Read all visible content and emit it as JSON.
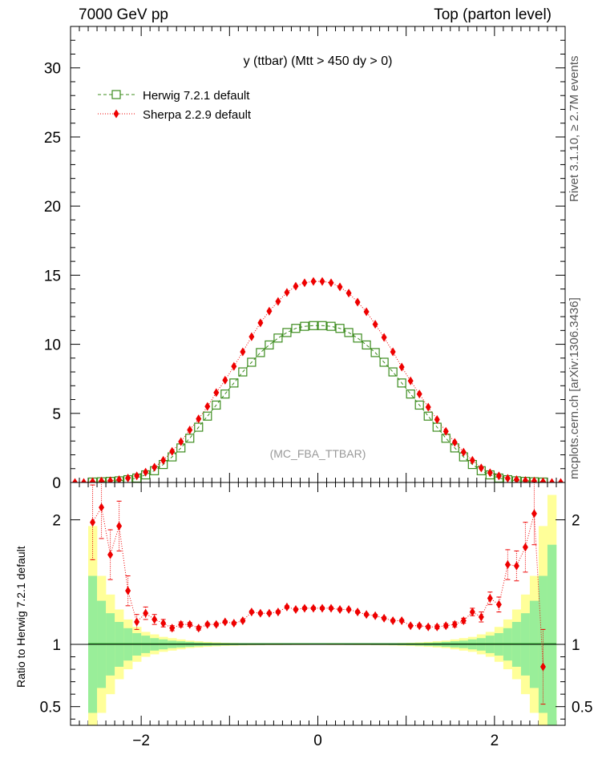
{
  "header": {
    "left": "7000 GeV pp",
    "right": "Top (parton level)"
  },
  "side_labels": {
    "rivet": "Rivet 3.1.10, ≥ 2.7M events",
    "mcplots": "mcplots.cern.ch [arXiv:1306.3436]"
  },
  "chart_data": [
    {
      "type": "scatter",
      "panel": "main",
      "title": "y (ttbar) (Mtt > 450 dy > 0)",
      "watermark": "(MC_FBA_TTBAR)",
      "xlim": [
        -2.8,
        2.8
      ],
      "ylim": [
        0,
        33
      ],
      "x_ticks": [
        -2,
        0,
        2
      ],
      "y_ticks": [
        0,
        5,
        10,
        15,
        20,
        25,
        30
      ],
      "legend_position": "top-left",
      "series": [
        {
          "name": "Herwig 7.2.1 default",
          "color": "#3c8c1e",
          "marker": "open-square",
          "line": "dashed",
          "x": [
            -2.55,
            -2.45,
            -2.35,
            -2.25,
            -2.15,
            -2.05,
            -1.95,
            -1.85,
            -1.75,
            -1.65,
            -1.55,
            -1.45,
            -1.35,
            -1.25,
            -1.15,
            -1.05,
            -0.95,
            -0.85,
            -0.75,
            -0.65,
            -0.55,
            -0.45,
            -0.35,
            -0.25,
            -0.15,
            -0.05,
            0.05,
            0.15,
            0.25,
            0.35,
            0.45,
            0.55,
            0.65,
            0.75,
            0.85,
            0.95,
            1.05,
            1.15,
            1.25,
            1.35,
            1.45,
            1.55,
            1.65,
            1.75,
            1.85,
            1.95,
            2.05,
            2.15,
            2.25,
            2.35,
            2.45,
            2.55
          ],
          "y": [
            0.03,
            0.05,
            0.08,
            0.12,
            0.2,
            0.32,
            0.55,
            0.85,
            1.3,
            1.85,
            2.5,
            3.2,
            4.0,
            4.8,
            5.6,
            6.4,
            7.2,
            8.0,
            8.7,
            9.4,
            9.95,
            10.45,
            10.85,
            11.15,
            11.3,
            11.35,
            11.35,
            11.3,
            11.15,
            10.85,
            10.45,
            9.95,
            9.4,
            8.7,
            8.0,
            7.2,
            6.4,
            5.6,
            4.8,
            4.0,
            3.2,
            2.5,
            1.85,
            1.3,
            0.85,
            0.55,
            0.32,
            0.2,
            0.12,
            0.08,
            0.05,
            0.03
          ]
        },
        {
          "name": "Sherpa 2.2.9 default",
          "color": "#ee0000",
          "marker": "filled-diamond",
          "line": "dotted",
          "x": [
            -2.75,
            -2.65,
            -2.55,
            -2.45,
            -2.35,
            -2.25,
            -2.15,
            -2.05,
            -1.95,
            -1.85,
            -1.75,
            -1.65,
            -1.55,
            -1.45,
            -1.35,
            -1.25,
            -1.15,
            -1.05,
            -0.95,
            -0.85,
            -0.75,
            -0.65,
            -0.55,
            -0.45,
            -0.35,
            -0.25,
            -0.15,
            -0.05,
            0.05,
            0.15,
            0.25,
            0.35,
            0.45,
            0.55,
            0.65,
            0.75,
            0.85,
            0.95,
            1.05,
            1.15,
            1.25,
            1.35,
            1.45,
            1.55,
            1.65,
            1.75,
            1.85,
            1.95,
            2.05,
            2.15,
            2.25,
            2.35,
            2.45,
            2.55,
            2.65,
            2.75
          ],
          "y": [
            0.0,
            0.0,
            0.06,
            0.1,
            0.12,
            0.2,
            0.32,
            0.48,
            0.75,
            1.1,
            1.6,
            2.25,
            2.95,
            3.8,
            4.6,
            5.5,
            6.5,
            7.4,
            8.4,
            9.45,
            10.55,
            11.55,
            12.4,
            13.1,
            13.75,
            14.2,
            14.45,
            14.55,
            14.55,
            14.45,
            14.15,
            13.7,
            13.05,
            12.35,
            11.45,
            10.5,
            9.45,
            8.35,
            7.35,
            6.4,
            5.45,
            4.55,
            3.7,
            2.9,
            2.2,
            1.6,
            1.05,
            0.7,
            0.48,
            0.3,
            0.2,
            0.14,
            0.1,
            0.05,
            0.0,
            0.0
          ]
        }
      ]
    },
    {
      "type": "line",
      "panel": "ratio",
      "ylabel": "Ratio to Herwig 7.2.1 default",
      "xlim": [
        -2.8,
        2.8
      ],
      "ylim": [
        0.35,
        2.3
      ],
      "x_ticks": [
        -2,
        0,
        2
      ],
      "y_ticks": [
        0.5,
        1,
        2
      ],
      "reference_line": 1,
      "band_colors": {
        "inner": "#99ee99",
        "outer": "#ffff99"
      },
      "bands": {
        "x_edges": [
          -2.6,
          -2.5,
          -2.4,
          -2.3,
          -2.2,
          -2.1,
          -2.0,
          -1.9,
          -1.8,
          -1.7,
          -1.6,
          -1.5,
          -1.4,
          -1.3,
          -1.2,
          -1.1,
          -1.0,
          -0.9,
          -0.8,
          -0.7,
          -0.6,
          -0.5,
          -0.4,
          -0.3,
          -0.2,
          -0.1,
          0.0,
          0.1,
          0.2,
          0.3,
          0.4,
          0.5,
          0.6,
          0.7,
          0.8,
          0.9,
          1.0,
          1.1,
          1.2,
          1.3,
          1.4,
          1.5,
          1.6,
          1.7,
          1.8,
          1.9,
          2.0,
          2.1,
          2.2,
          2.3,
          2.4,
          2.5,
          2.6,
          2.7
        ],
        "inner_halfwidth": [
          0.55,
          0.35,
          0.25,
          0.18,
          0.13,
          0.09,
          0.07,
          0.05,
          0.04,
          0.03,
          0.025,
          0.02,
          0.015,
          0.012,
          0.01,
          0.008,
          0.007,
          0.006,
          0.005,
          0.005,
          0.004,
          0.004,
          0.004,
          0.003,
          0.003,
          0.003,
          0.003,
          0.003,
          0.003,
          0.004,
          0.004,
          0.004,
          0.005,
          0.005,
          0.006,
          0.007,
          0.008,
          0.01,
          0.012,
          0.015,
          0.02,
          0.025,
          0.03,
          0.04,
          0.05,
          0.07,
          0.09,
          0.13,
          0.18,
          0.25,
          0.35,
          0.55,
          0.8
        ],
        "outer_halfwidth": [
          0.95,
          0.55,
          0.4,
          0.28,
          0.2,
          0.14,
          0.1,
          0.08,
          0.06,
          0.05,
          0.04,
          0.03,
          0.025,
          0.02,
          0.016,
          0.013,
          0.011,
          0.009,
          0.008,
          0.007,
          0.006,
          0.006,
          0.005,
          0.005,
          0.005,
          0.004,
          0.004,
          0.005,
          0.005,
          0.005,
          0.006,
          0.006,
          0.007,
          0.008,
          0.009,
          0.011,
          0.013,
          0.016,
          0.02,
          0.025,
          0.03,
          0.04,
          0.05,
          0.06,
          0.08,
          0.1,
          0.14,
          0.2,
          0.28,
          0.4,
          0.55,
          0.95,
          1.2
        ]
      },
      "series": [
        {
          "name": "Sherpa 2.2.9 default",
          "color": "#ee0000",
          "marker": "filled-diamond",
          "x": [
            -2.55,
            -2.45,
            -2.35,
            -2.25,
            -2.15,
            -2.05,
            -1.95,
            -1.85,
            -1.75,
            -1.65,
            -1.55,
            -1.45,
            -1.35,
            -1.25,
            -1.15,
            -1.05,
            -0.95,
            -0.85,
            -0.75,
            -0.65,
            -0.55,
            -0.45,
            -0.35,
            -0.25,
            -0.15,
            -0.05,
            0.05,
            0.15,
            0.25,
            0.35,
            0.45,
            0.55,
            0.65,
            0.75,
            0.85,
            0.95,
            1.05,
            1.15,
            1.25,
            1.35,
            1.45,
            1.55,
            1.65,
            1.75,
            1.85,
            1.95,
            2.05,
            2.15,
            2.25,
            2.35,
            2.45,
            2.55
          ],
          "y": [
            1.98,
            2.1,
            1.72,
            1.95,
            1.43,
            1.18,
            1.25,
            1.2,
            1.17,
            1.13,
            1.16,
            1.16,
            1.13,
            1.16,
            1.16,
            1.18,
            1.17,
            1.19,
            1.26,
            1.25,
            1.25,
            1.26,
            1.3,
            1.28,
            1.29,
            1.29,
            1.29,
            1.29,
            1.28,
            1.28,
            1.26,
            1.24,
            1.23,
            1.21,
            1.19,
            1.19,
            1.15,
            1.15,
            1.14,
            1.14,
            1.15,
            1.16,
            1.19,
            1.26,
            1.22,
            1.37,
            1.32,
            1.64,
            1.63,
            1.78,
            2.05,
            0.82
          ],
          "err": [
            0.3,
            0.25,
            0.2,
            0.2,
            0.12,
            0.06,
            0.05,
            0.04,
            0.03,
            0.02,
            0.02,
            0.015,
            0.015,
            0.012,
            0.012,
            0.01,
            0.01,
            0.01,
            0.01,
            0.01,
            0.01,
            0.01,
            0.01,
            0.01,
            0.01,
            0.01,
            0.01,
            0.01,
            0.01,
            0.01,
            0.01,
            0.01,
            0.01,
            0.01,
            0.01,
            0.01,
            0.01,
            0.012,
            0.012,
            0.015,
            0.015,
            0.02,
            0.02,
            0.03,
            0.04,
            0.05,
            0.06,
            0.12,
            0.12,
            0.2,
            0.25,
            0.3
          ]
        }
      ]
    }
  ]
}
